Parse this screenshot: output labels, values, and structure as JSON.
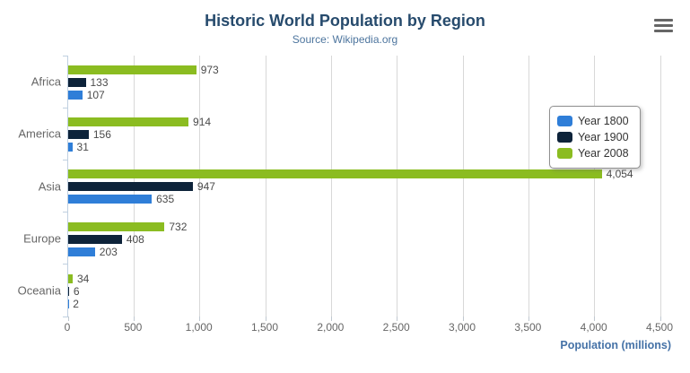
{
  "header": {
    "title": "Historic World Population by Region",
    "subtitle": "Source: Wikipedia.org",
    "menu_icon": "hamburger-icon"
  },
  "chart_data": {
    "type": "bar",
    "orientation": "horizontal",
    "title": "Historic World Population by Region",
    "subtitle": "Source: Wikipedia.org",
    "categories": [
      "Africa",
      "America",
      "Asia",
      "Europe",
      "Oceania"
    ],
    "series": [
      {
        "name": "Year 1800",
        "color": "#2f7ed8",
        "values": [
          107,
          31,
          635,
          203,
          2
        ]
      },
      {
        "name": "Year 1900",
        "color": "#0d233a",
        "values": [
          133,
          156,
          947,
          408,
          6
        ]
      },
      {
        "name": "Year 2008",
        "color": "#8bbc21",
        "values": [
          973,
          914,
          4054,
          732,
          34
        ]
      }
    ],
    "bar_display_order_top_to_bottom": [
      "Year 2008",
      "Year 1900",
      "Year 1800"
    ],
    "data_labels": {
      "Africa": {
        "Year 2008": "973",
        "Year 1900": "133",
        "Year 1800": "107"
      },
      "America": {
        "Year 2008": "914",
        "Year 1900": "156",
        "Year 1800": "31"
      },
      "Asia": {
        "Year 2008": "4,054",
        "Year 1900": "947",
        "Year 1800": "635"
      },
      "Europe": {
        "Year 2008": "732",
        "Year 1900": "408",
        "Year 1800": "203"
      },
      "Oceania": {
        "Year 2008": "34",
        "Year 1900": "6",
        "Year 1800": "2"
      }
    },
    "xlabel": "Population (millions)",
    "ylabel": "",
    "x_ticks": [
      "0",
      "500",
      "1,000",
      "1,500",
      "2,000",
      "2,500",
      "3,000",
      "3,500",
      "4,000",
      "4,500"
    ],
    "xlim": [
      0,
      4500
    ],
    "grid": true,
    "legend_position": "right"
  },
  "legend": {
    "items": [
      {
        "label": "Year 1800",
        "color": "#2f7ed8"
      },
      {
        "label": "Year 1900",
        "color": "#0d233a"
      },
      {
        "label": "Year 2008",
        "color": "#8bbc21"
      }
    ]
  },
  "colors": {
    "title": "#274b6d",
    "subtitle": "#4d759e",
    "axis_title": "#4572a7",
    "tick_labels": "#666666",
    "data_labels": "#4a4a4a",
    "axis_line": "#c0d0e0",
    "gridline": "#d8d8d8",
    "menu_icon": "#666666",
    "series_blue": "#2f7ed8",
    "series_navy": "#0d233a",
    "series_green": "#8bbc21"
  }
}
